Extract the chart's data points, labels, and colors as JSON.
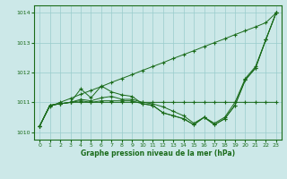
{
  "title": "Graphe pression niveau de la mer (hPa)",
  "ylim": [
    1009.75,
    1014.25
  ],
  "yticks": [
    1010,
    1011,
    1012,
    1013,
    1014
  ],
  "xticks": [
    0,
    1,
    2,
    3,
    4,
    5,
    6,
    7,
    8,
    9,
    10,
    11,
    12,
    13,
    14,
    15,
    16,
    17,
    18,
    19,
    20,
    21,
    22,
    23
  ],
  "bg_color": "#cce8e8",
  "grid_color": "#99cccc",
  "line_color": "#1a6b1a",
  "series1_straight": [
    1010.2,
    1010.87,
    1011.0,
    1011.13,
    1011.27,
    1011.4,
    1011.53,
    1011.67,
    1011.8,
    1011.93,
    1012.07,
    1012.2,
    1012.33,
    1012.47,
    1012.6,
    1012.73,
    1012.87,
    1013.0,
    1013.13,
    1013.27,
    1013.4,
    1013.53,
    1013.67,
    1014.0
  ],
  "series2_flat": [
    1010.2,
    1010.9,
    1010.95,
    1011.0,
    1011.0,
    1011.0,
    1011.0,
    1011.0,
    1011.0,
    1011.0,
    1011.0,
    1011.0,
    1011.0,
    1011.0,
    1011.0,
    1011.0,
    1011.0,
    1011.0,
    1011.0,
    1011.0,
    1011.0,
    1011.0,
    1011.0,
    1011.0
  ],
  "series3_wiggly": [
    1010.2,
    1010.9,
    1010.95,
    1011.0,
    1011.45,
    1011.15,
    1011.55,
    1011.35,
    1011.25,
    1011.2,
    1010.95,
    1010.9,
    1010.65,
    1010.55,
    1010.45,
    1010.25,
    1010.5,
    1010.25,
    1010.45,
    1010.9,
    1011.75,
    1012.15,
    1013.1,
    1014.0
  ],
  "series4_dip": [
    1010.2,
    1010.9,
    1010.95,
    1011.0,
    1011.05,
    1011.0,
    1011.05,
    1011.05,
    1011.05,
    1011.05,
    1010.95,
    1010.9,
    1010.65,
    1010.55,
    1010.45,
    1010.25,
    1010.5,
    1010.25,
    1010.45,
    1010.9,
    1011.75,
    1012.15,
    1013.1,
    1014.0
  ],
  "series5_mid": [
    1010.2,
    1010.9,
    1010.95,
    1011.0,
    1011.1,
    1011.05,
    1011.15,
    1011.2,
    1011.1,
    1011.1,
    1011.0,
    1010.95,
    1010.85,
    1010.7,
    1010.55,
    1010.3,
    1010.5,
    1010.3,
    1010.5,
    1011.0,
    1011.8,
    1012.2,
    1013.1,
    1014.0
  ]
}
